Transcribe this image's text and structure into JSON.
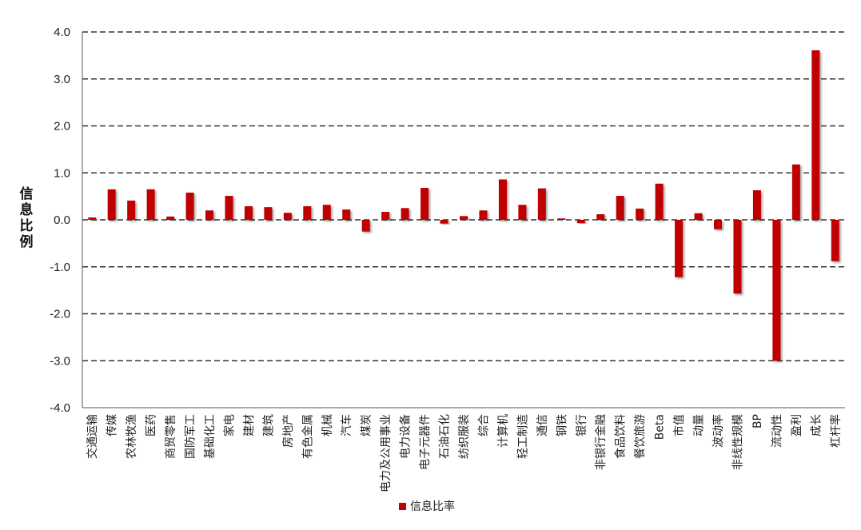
{
  "chart_data": {
    "type": "bar",
    "ylabel": "信息比例",
    "ylim": [
      -4.0,
      4.0
    ],
    "yticks": [
      "4.0",
      "3.0",
      "2.0",
      "1.0",
      "0.0",
      "-1.0",
      "-2.0",
      "-3.0",
      "-4.0"
    ],
    "grid": true,
    "legend_position": "bottom",
    "bar_color": "#c00000",
    "categories": [
      "交通运输",
      "传媒",
      "农林牧渔",
      "医药",
      "商贸零售",
      "国防军工",
      "基础化工",
      "家电",
      "建材",
      "建筑",
      "房地产",
      "有色金属",
      "机械",
      "汽车",
      "煤炭",
      "电力及公用事业",
      "电力设备",
      "电子元器件",
      "石油石化",
      "纺织服装",
      "综合",
      "计算机",
      "轻工制造",
      "通信",
      "钢铁",
      "银行",
      "非银行金融",
      "食品饮料",
      "餐饮旅游",
      "Beta",
      "市值",
      "动量",
      "波动率",
      "非线性规模",
      "BP",
      "流动性",
      "盈利",
      "成长",
      "杠杆率"
    ],
    "series": [
      {
        "name": "信息比率",
        "values": [
          0.05,
          0.65,
          0.41,
          0.65,
          0.07,
          0.58,
          0.2,
          0.51,
          0.29,
          0.27,
          0.15,
          0.29,
          0.32,
          0.22,
          -0.25,
          0.17,
          0.25,
          0.68,
          -0.08,
          0.08,
          0.2,
          0.86,
          0.32,
          0.67,
          0.03,
          -0.07,
          0.12,
          0.51,
          0.24,
          0.77,
          -1.22,
          0.14,
          -0.2,
          -1.57,
          0.63,
          -3.0,
          1.18,
          3.61,
          -0.88
        ]
      }
    ]
  }
}
